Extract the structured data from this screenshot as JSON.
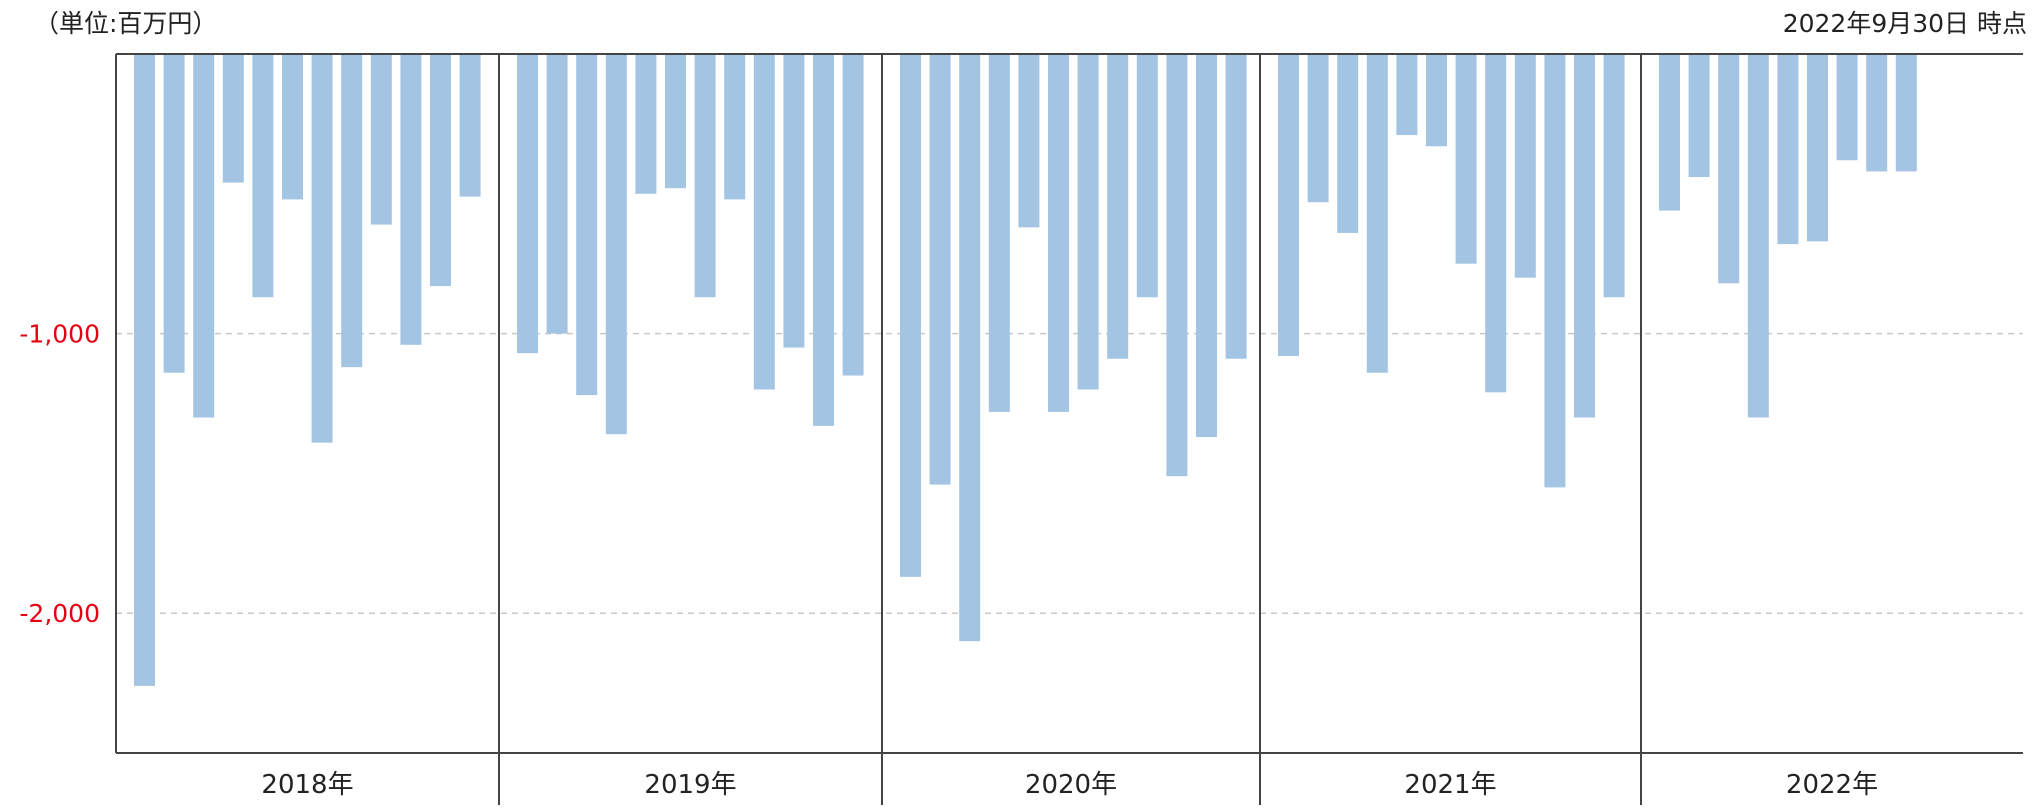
{
  "header": {
    "unit_label": "（単位:百万円）",
    "as_of_label": "2022年9月30日 時点"
  },
  "colors": {
    "bar": "#a4c4e4",
    "axis": "#444444",
    "grid": "#c8c8c8",
    "ytick": "#e60012"
  },
  "chart_data": {
    "type": "bar",
    "ylim": [
      -2500,
      0
    ],
    "yticks": [
      -1000,
      -2000
    ],
    "ytick_labels": [
      "-1,000",
      "-2,000"
    ],
    "grid": "dashed-horizontal",
    "legend": "none",
    "groups": [
      {
        "label": "2018年",
        "values": [
          -2260,
          -1140,
          -1300,
          -460,
          -870,
          -520,
          -1390,
          -1120,
          -610,
          -1040,
          -830,
          -510
        ]
      },
      {
        "label": "2019年",
        "values": [
          -1070,
          -1000,
          -1220,
          -1360,
          -500,
          -480,
          -870,
          -520,
          -1200,
          -1050,
          -1330,
          -1150
        ]
      },
      {
        "label": "2020年",
        "values": [
          -1870,
          -1540,
          -2100,
          -1280,
          -620,
          -1280,
          -1200,
          -1090,
          -870,
          -1510,
          -1370,
          -1090
        ]
      },
      {
        "label": "2021年",
        "values": [
          -1080,
          -530,
          -640,
          -1140,
          -290,
          -330,
          -750,
          -1210,
          -800,
          -1550,
          -1300,
          -870
        ]
      },
      {
        "label": "2022年",
        "values": [
          -560,
          -440,
          -820,
          -1300,
          -680,
          -670,
          -380,
          -420,
          -420
        ]
      }
    ]
  }
}
